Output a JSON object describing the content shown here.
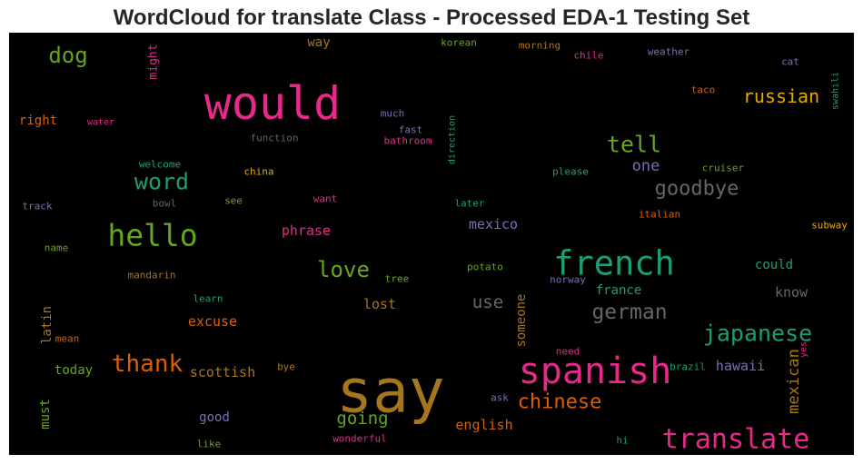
{
  "chart_data": {
    "type": "wordcloud",
    "title": "WordCloud for translate Class - Processed EDA-1 Testing Set",
    "background": "#000000",
    "palette": [
      "#1b9e77",
      "#d95f02",
      "#7570b3",
      "#e7298a",
      "#66a61e",
      "#e6ab02",
      "#a6761d",
      "#666666"
    ],
    "words": [
      {
        "text": "say",
        "color": "#a6761d"
      },
      {
        "text": "would",
        "color": "#e7298a"
      },
      {
        "text": "spanish",
        "color": "#e7298a"
      },
      {
        "text": "french",
        "color": "#1b9e77"
      },
      {
        "text": "hello",
        "color": "#66a61e"
      },
      {
        "text": "translate",
        "color": "#e7298a"
      },
      {
        "text": "japanese",
        "color": "#1b9e77"
      },
      {
        "text": "thank",
        "color": "#d95f02"
      },
      {
        "text": "chinese",
        "color": "#d95f02"
      },
      {
        "text": "german",
        "color": "#666666"
      },
      {
        "text": "tell",
        "color": "#66a61e"
      },
      {
        "text": "goodbye",
        "color": "#666666"
      },
      {
        "text": "word",
        "color": "#1b9e77"
      },
      {
        "text": "love",
        "color": "#66a61e"
      },
      {
        "text": "russian",
        "color": "#e6ab02"
      },
      {
        "text": "dog",
        "color": "#66a61e"
      },
      {
        "text": "mexican",
        "color": "#a6761d"
      },
      {
        "text": "going",
        "color": "#66a61e"
      },
      {
        "text": "use",
        "color": "#666666"
      },
      {
        "text": "one",
        "color": "#7570b3"
      },
      {
        "text": "someone",
        "color": "#a6761d"
      },
      {
        "text": "scottish",
        "color": "#a6761d"
      },
      {
        "text": "english",
        "color": "#d95f02"
      },
      {
        "text": "excuse",
        "color": "#d95f02"
      },
      {
        "text": "hawaii",
        "color": "#7570b3"
      },
      {
        "text": "mexico",
        "color": "#7570b3"
      },
      {
        "text": "france",
        "color": "#1b9e77"
      },
      {
        "text": "know",
        "color": "#666666"
      },
      {
        "text": "could",
        "color": "#1b9e77"
      },
      {
        "text": "phrase",
        "color": "#e7298a"
      },
      {
        "text": "lost",
        "color": "#a6761d"
      },
      {
        "text": "good",
        "color": "#7570b3"
      },
      {
        "text": "today",
        "color": "#66a61e"
      },
      {
        "text": "latin",
        "color": "#a6761d"
      },
      {
        "text": "must",
        "color": "#66a61e"
      },
      {
        "text": "might",
        "color": "#e7298a"
      },
      {
        "text": "right",
        "color": "#d95f02"
      },
      {
        "text": "way",
        "color": "#a6761d"
      },
      {
        "text": "korean",
        "color": "#66a61e"
      },
      {
        "text": "morning",
        "color": "#a6761d"
      },
      {
        "text": "chile",
        "color": "#e7298a"
      },
      {
        "text": "weather",
        "color": "#7570b3"
      },
      {
        "text": "cat",
        "color": "#7570b3"
      },
      {
        "text": "swahili",
        "color": "#1b9e77"
      },
      {
        "text": "taco",
        "color": "#d95f02"
      },
      {
        "text": "water",
        "color": "#e7298a"
      },
      {
        "text": "much",
        "color": "#7570b3"
      },
      {
        "text": "fast",
        "color": "#7570b3"
      },
      {
        "text": "bathroom",
        "color": "#e7298a"
      },
      {
        "text": "direction",
        "color": "#1b9e77"
      },
      {
        "text": "function",
        "color": "#666666"
      },
      {
        "text": "welcome",
        "color": "#1b9e77"
      },
      {
        "text": "china",
        "color": "#e6ab02"
      },
      {
        "text": "please",
        "color": "#1b9e77"
      },
      {
        "text": "cruiser",
        "color": "#66a61e"
      },
      {
        "text": "track",
        "color": "#7570b3"
      },
      {
        "text": "bowl",
        "color": "#666666"
      },
      {
        "text": "see",
        "color": "#66a61e"
      },
      {
        "text": "want",
        "color": "#e7298a"
      },
      {
        "text": "later",
        "color": "#1b9e77"
      },
      {
        "text": "italian",
        "color": "#d95f02"
      },
      {
        "text": "subway",
        "color": "#e6ab02"
      },
      {
        "text": "name",
        "color": "#66a61e"
      },
      {
        "text": "mandarin",
        "color": "#a6761d"
      },
      {
        "text": "tree",
        "color": "#66a61e"
      },
      {
        "text": "potato",
        "color": "#66a61e"
      },
      {
        "text": "norway",
        "color": "#7570b3"
      },
      {
        "text": "learn",
        "color": "#1b9e77"
      },
      {
        "text": "mean",
        "color": "#d95f02"
      },
      {
        "text": "need",
        "color": "#e7298a"
      },
      {
        "text": "yes",
        "color": "#e7298a"
      },
      {
        "text": "brazil",
        "color": "#1b9e77"
      },
      {
        "text": "bye",
        "color": "#a6761d"
      },
      {
        "text": "ask",
        "color": "#7570b3"
      },
      {
        "text": "like",
        "color": "#66a61e"
      },
      {
        "text": "wonderful",
        "color": "#e7298a"
      },
      {
        "text": "hi",
        "color": "#1b9e77"
      }
    ]
  }
}
